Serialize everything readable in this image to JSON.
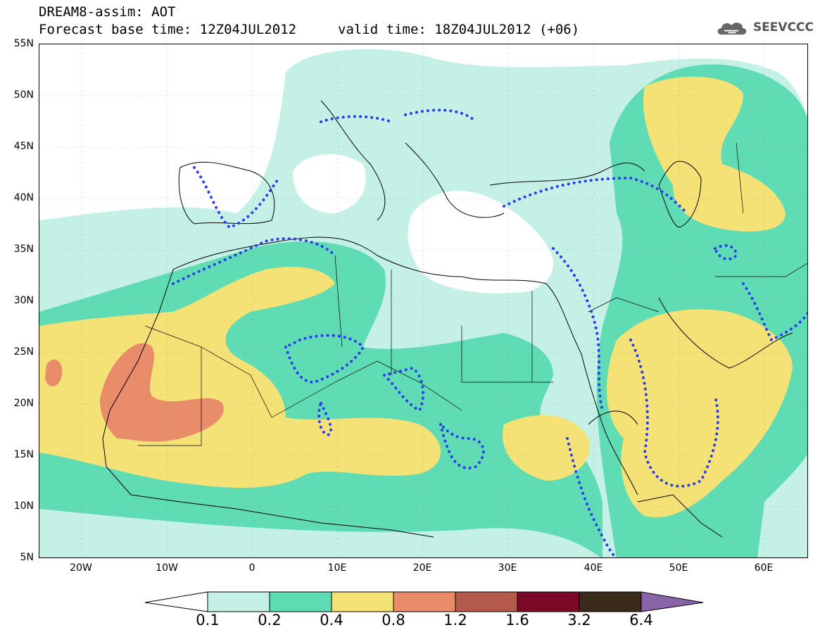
{
  "header": {
    "title": "DREAM8-assim: AOT",
    "forecast": "Forecast base time: 12Z04JUL2012",
    "valid": "valid time: 18Z04JUL2012 (+06)",
    "logo_text": "SEEVCCC",
    "logo_icon": "cloud-icon"
  },
  "map": {
    "lat_labels": [
      "55N",
      "50N",
      "45N",
      "40N",
      "35N",
      "30N",
      "25N",
      "20N",
      "15N",
      "10N",
      "5N"
    ],
    "lon_labels": [
      "20W",
      "10W",
      "0",
      "10E",
      "20E",
      "30E",
      "40E",
      "50E",
      "60E"
    ]
  },
  "colorbar": {
    "labels": [
      "0.1",
      "0.2",
      "0.4",
      "0.8",
      "1.2",
      "1.6",
      "3.2",
      "6.4"
    ],
    "colors": [
      "#c4f0e6",
      "#5fdcb4",
      "#f5e276",
      "#e88c6a",
      "#b35a4a",
      "#7a0a28",
      "#3a2a1a",
      "#8a64a8"
    ]
  },
  "colors": {
    "lev1": "#c4f0e6",
    "lev2": "#5fdcb4",
    "lev3": "#f5e276",
    "lev4": "#e88c6a",
    "dots": "#2b3cf0"
  }
}
